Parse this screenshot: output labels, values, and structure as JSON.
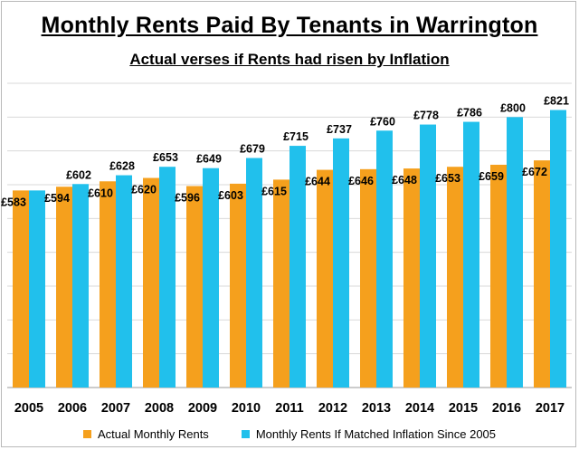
{
  "chart_data": {
    "type": "bar",
    "title": "Monthly Rents Paid By Tenants in Warrington",
    "subtitle": "Actual verses if Rents had risen by Inflation",
    "xlabel": "",
    "ylabel": "",
    "ylim": [
      0,
      900
    ],
    "grid": true,
    "legend_position": "bottom",
    "categories": [
      "2005",
      "2006",
      "2007",
      "2008",
      "2009",
      "2010",
      "2011",
      "2012",
      "2013",
      "2014",
      "2015",
      "2016",
      "2017"
    ],
    "series": [
      {
        "name": "Actual Monthly Rents",
        "color": "#f5a01d",
        "values": [
          583,
          594,
          610,
          620,
          596,
          603,
          615,
          644,
          646,
          648,
          653,
          659,
          672
        ],
        "labels": [
          "£583",
          "£594",
          "£610",
          "£620",
          "£596",
          "£603",
          "£615",
          "£644",
          "£646",
          "£648",
          "£653",
          "£659",
          "£672"
        ]
      },
      {
        "name": "Monthly Rents If Matched Inflation Since 2005",
        "color": "#21c0ec",
        "values": [
          583,
          602,
          628,
          653,
          649,
          679,
          715,
          737,
          760,
          778,
          786,
          800,
          821
        ],
        "labels": [
          "",
          "£602",
          "£628",
          "£653",
          "£649",
          "£679",
          "£715",
          "£737",
          "£760",
          "£778",
          "£786",
          "£800",
          "£821"
        ]
      }
    ]
  }
}
